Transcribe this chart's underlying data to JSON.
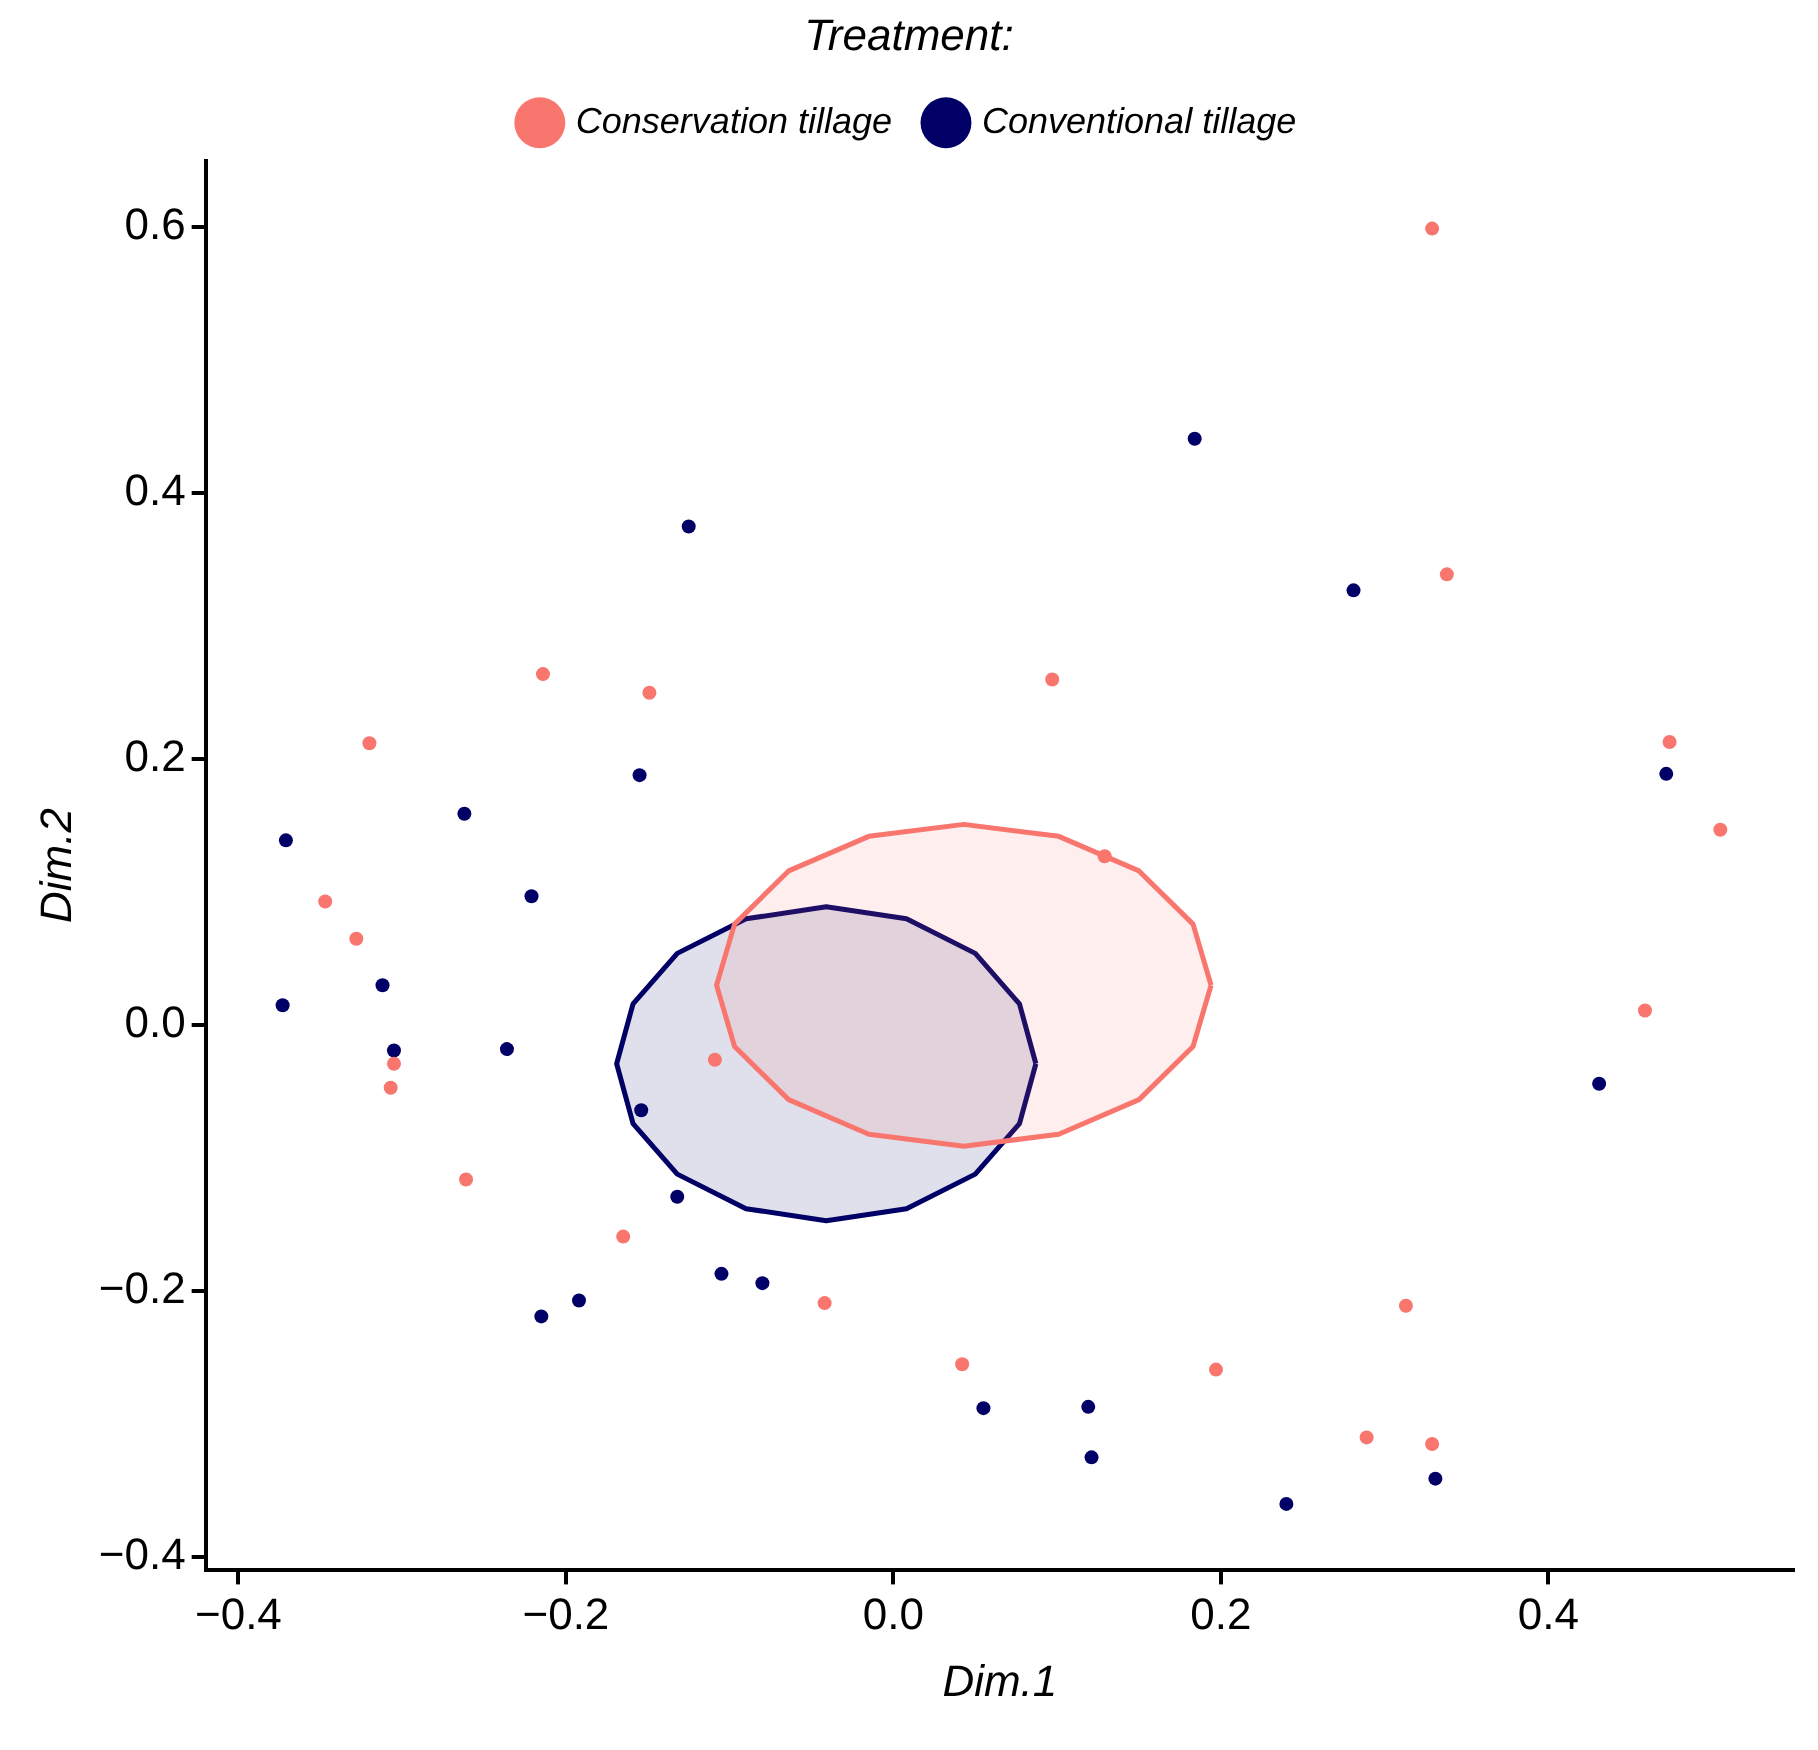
{
  "chart_data": {
    "type": "scatter",
    "xlabel": "Dim.1",
    "ylabel": "Dim.2",
    "legend_title": "Treatment:",
    "legend": "top",
    "marker": "circle",
    "xlim": [
      -0.42,
      0.55
    ],
    "ylim": [
      -0.41,
      0.65
    ],
    "xticks": [
      -0.4,
      -0.2,
      {
        "value": 0,
        "label": "0.0"
      },
      0.2,
      0.4
    ],
    "yticks": [
      -0.4,
      -0.2,
      {
        "value": 0,
        "label": "0.0"
      },
      0.2,
      0.4,
      0.6
    ],
    "series": [
      {
        "name": "Conservation tillage",
        "color": "#f8766d",
        "x": [
          -0.214,
          -0.149,
          -0.32,
          -0.347,
          0.329,
          0.338,
          0.097,
          0.474,
          0.505,
          0.129,
          -0.328,
          -0.305,
          -0.307,
          -0.109,
          -0.261,
          -0.165,
          -0.042,
          0.042,
          0.459,
          0.313,
          0.197,
          0.289,
          0.329
        ],
        "values": [
          0.264,
          0.25,
          0.212,
          0.093,
          0.599,
          0.339,
          0.26,
          0.213,
          0.147,
          0.127,
          0.065,
          -0.029,
          -0.047,
          -0.026,
          -0.116,
          -0.159,
          -0.209,
          -0.255,
          0.011,
          -0.211,
          -0.259,
          -0.31,
          -0.315
        ]
      },
      {
        "name": "Conventional tillage",
        "color": "#000066",
        "x": [
          -0.125,
          -0.155,
          -0.262,
          -0.371,
          -0.221,
          0.184,
          0.281,
          0.472,
          -0.312,
          -0.373,
          -0.305,
          -0.236,
          -0.154,
          -0.132,
          -0.105,
          -0.08,
          -0.192,
          -0.215,
          0.055,
          0.431,
          0.119,
          0.121,
          0.331,
          0.24
        ],
        "values": [
          0.375,
          0.188,
          0.159,
          0.139,
          0.097,
          0.441,
          0.327,
          0.189,
          0.03,
          0.015,
          -0.019,
          -0.018,
          -0.064,
          -0.129,
          -0.187,
          -0.194,
          -0.207,
          -0.219,
          -0.288,
          -0.044,
          -0.287,
          -0.325,
          -0.341,
          -0.36
        ]
      },
      {
        "type": "area",
        "marker": "none",
        "color": "#f8766d",
        "x": [
          0.194,
          0.183,
          0.15,
          0.101,
          0.043,
          -0.015,
          -0.064,
          -0.097,
          -0.108,
          -0.097,
          -0.064,
          -0.015,
          0.043,
          0.101,
          0.15,
          0.183,
          0.194
        ],
        "values": [
          0.03,
          0.076,
          0.116,
          0.142,
          0.151,
          0.142,
          0.116,
          0.076,
          0.03,
          -0.016,
          -0.056,
          -0.082,
          -0.091,
          -0.082,
          -0.056,
          -0.016,
          0.03
        ]
      },
      {
        "type": "area",
        "marker": "none",
        "color": "#000066",
        "x": [
          0.087,
          0.077,
          0.05,
          0.008,
          -0.041,
          -0.09,
          -0.132,
          -0.159,
          -0.169,
          -0.159,
          -0.132,
          -0.09,
          -0.041,
          0.008,
          0.05,
          0.077,
          0.087
        ],
        "values": [
          -0.029,
          0.016,
          0.054,
          0.08,
          0.089,
          0.08,
          0.054,
          0.016,
          -0.029,
          -0.074,
          -0.112,
          -0.138,
          -0.147,
          -0.138,
          -0.112,
          -0.074,
          -0.029
        ]
      }
    ]
  }
}
